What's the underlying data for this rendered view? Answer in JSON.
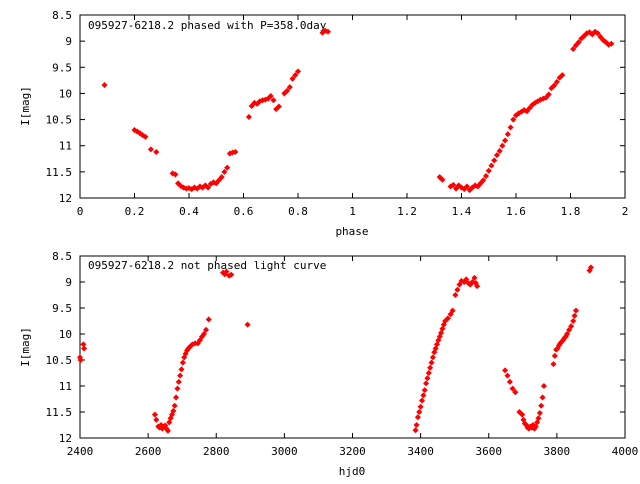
{
  "chart_data": [
    {
      "type": "scatter",
      "title": "095927-6218.2 phased with P=358.0day",
      "xlabel": "phase",
      "ylabel": "I[mag]",
      "xlim": [
        0,
        2
      ],
      "ylim": [
        8.5,
        12
      ],
      "y_inverted": true,
      "x_ticks": [
        "0",
        "0.2",
        "0.4",
        "0.6",
        "0.8",
        "1",
        "1.2",
        "1.4",
        "1.6",
        "1.8",
        "2"
      ],
      "y_ticks": [
        "8.5",
        "9",
        "9.5",
        "10",
        "10.5",
        "11",
        "11.5",
        "12"
      ],
      "marker_color": "#ff0000",
      "grid": false,
      "points": [
        [
          0.09,
          9.84
        ],
        [
          0.2,
          10.7
        ],
        [
          0.21,
          10.73
        ],
        [
          0.22,
          10.76
        ],
        [
          0.23,
          10.8
        ],
        [
          0.24,
          10.83
        ],
        [
          0.26,
          11.07
        ],
        [
          0.28,
          11.12
        ],
        [
          0.34,
          11.53
        ],
        [
          0.35,
          11.55
        ],
        [
          0.36,
          11.72
        ],
        [
          0.37,
          11.77
        ],
        [
          0.38,
          11.8
        ],
        [
          0.39,
          11.82
        ],
        [
          0.4,
          11.81
        ],
        [
          0.41,
          11.83
        ],
        [
          0.42,
          11.8
        ],
        [
          0.43,
          11.82
        ],
        [
          0.44,
          11.78
        ],
        [
          0.45,
          11.8
        ],
        [
          0.46,
          11.76
        ],
        [
          0.47,
          11.8
        ],
        [
          0.48,
          11.73
        ],
        [
          0.49,
          11.7
        ],
        [
          0.5,
          11.72
        ],
        [
          0.51,
          11.66
        ],
        [
          0.52,
          11.6
        ],
        [
          0.53,
          11.5
        ],
        [
          0.54,
          11.42
        ],
        [
          0.55,
          11.15
        ],
        [
          0.56,
          11.13
        ],
        [
          0.57,
          11.12
        ],
        [
          0.62,
          10.45
        ],
        [
          0.63,
          10.24
        ],
        [
          0.64,
          10.18
        ],
        [
          0.65,
          10.2
        ],
        [
          0.66,
          10.15
        ],
        [
          0.67,
          10.13
        ],
        [
          0.68,
          10.12
        ],
        [
          0.69,
          10.1
        ],
        [
          0.7,
          10.05
        ],
        [
          0.71,
          10.13
        ],
        [
          0.72,
          10.3
        ],
        [
          0.73,
          10.25
        ],
        [
          0.75,
          10.0
        ],
        [
          0.76,
          9.95
        ],
        [
          0.77,
          9.88
        ],
        [
          0.78,
          9.72
        ],
        [
          0.79,
          9.65
        ],
        [
          0.8,
          9.58
        ],
        [
          0.89,
          8.84
        ],
        [
          0.9,
          8.8
        ],
        [
          0.91,
          8.82
        ],
        [
          1.32,
          11.6
        ],
        [
          1.33,
          11.65
        ],
        [
          1.36,
          11.78
        ],
        [
          1.37,
          11.75
        ],
        [
          1.38,
          11.82
        ],
        [
          1.39,
          11.76
        ],
        [
          1.4,
          11.8
        ],
        [
          1.41,
          11.83
        ],
        [
          1.42,
          11.78
        ],
        [
          1.43,
          11.85
        ],
        [
          1.44,
          11.8
        ],
        [
          1.45,
          11.76
        ],
        [
          1.46,
          11.78
        ],
        [
          1.47,
          11.72
        ],
        [
          1.48,
          11.66
        ],
        [
          1.49,
          11.58
        ],
        [
          1.5,
          11.48
        ],
        [
          1.51,
          11.38
        ],
        [
          1.52,
          11.28
        ],
        [
          1.53,
          11.18
        ],
        [
          1.54,
          11.1
        ],
        [
          1.55,
          11.0
        ],
        [
          1.56,
          10.9
        ],
        [
          1.57,
          10.78
        ],
        [
          1.58,
          10.65
        ],
        [
          1.59,
          10.5
        ],
        [
          1.6,
          10.42
        ],
        [
          1.61,
          10.38
        ],
        [
          1.62,
          10.35
        ],
        [
          1.63,
          10.32
        ],
        [
          1.64,
          10.34
        ],
        [
          1.65,
          10.28
        ],
        [
          1.66,
          10.22
        ],
        [
          1.67,
          10.18
        ],
        [
          1.68,
          10.15
        ],
        [
          1.69,
          10.12
        ],
        [
          1.7,
          10.1
        ],
        [
          1.71,
          10.08
        ],
        [
          1.72,
          10.02
        ],
        [
          1.73,
          9.9
        ],
        [
          1.74,
          9.85
        ],
        [
          1.75,
          9.78
        ],
        [
          1.76,
          9.7
        ],
        [
          1.77,
          9.65
        ],
        [
          1.81,
          9.15
        ],
        [
          1.82,
          9.08
        ],
        [
          1.83,
          9.02
        ],
        [
          1.84,
          8.95
        ],
        [
          1.85,
          8.9
        ],
        [
          1.86,
          8.85
        ],
        [
          1.87,
          8.83
        ],
        [
          1.88,
          8.87
        ],
        [
          1.89,
          8.82
        ],
        [
          1.9,
          8.85
        ],
        [
          1.91,
          8.92
        ],
        [
          1.92,
          8.98
        ],
        [
          1.93,
          9.02
        ],
        [
          1.94,
          9.07
        ],
        [
          1.95,
          9.05
        ]
      ]
    },
    {
      "type": "scatter",
      "title": "095927-6218.2 not phased light curve",
      "xlabel": "hjd0",
      "ylabel": "I[mag]",
      "xlim": [
        2400,
        4000
      ],
      "ylim": [
        8.5,
        12
      ],
      "y_inverted": true,
      "x_ticks": [
        "2400",
        "2600",
        "2800",
        "3000",
        "3200",
        "3400",
        "3600",
        "3800",
        "4000"
      ],
      "y_ticks": [
        "8.5",
        "9",
        "9.5",
        "10",
        "10.5",
        "11",
        "11.5",
        "12"
      ],
      "marker_color": "#ff0000",
      "grid": false,
      "points": [
        [
          2400,
          10.45
        ],
        [
          2402,
          10.5
        ],
        [
          2410,
          10.2
        ],
        [
          2412,
          10.28
        ],
        [
          2620,
          11.55
        ],
        [
          2624,
          11.65
        ],
        [
          2630,
          11.78
        ],
        [
          2634,
          11.8
        ],
        [
          2638,
          11.75
        ],
        [
          2642,
          11.82
        ],
        [
          2646,
          11.78
        ],
        [
          2650,
          11.76
        ],
        [
          2654,
          11.82
        ],
        [
          2658,
          11.86
        ],
        [
          2662,
          11.7
        ],
        [
          2666,
          11.62
        ],
        [
          2670,
          11.55
        ],
        [
          2674,
          11.48
        ],
        [
          2678,
          11.38
        ],
        [
          2682,
          11.22
        ],
        [
          2686,
          11.05
        ],
        [
          2690,
          10.92
        ],
        [
          2694,
          10.8
        ],
        [
          2698,
          10.68
        ],
        [
          2702,
          10.55
        ],
        [
          2706,
          10.45
        ],
        [
          2710,
          10.38
        ],
        [
          2714,
          10.32
        ],
        [
          2718,
          10.28
        ],
        [
          2722,
          10.25
        ],
        [
          2730,
          10.2
        ],
        [
          2738,
          10.18
        ],
        [
          2746,
          10.18
        ],
        [
          2752,
          10.12
        ],
        [
          2758,
          10.05
        ],
        [
          2764,
          10.0
        ],
        [
          2770,
          9.92
        ],
        [
          2778,
          9.72
        ],
        [
          2820,
          8.82
        ],
        [
          2825,
          8.85
        ],
        [
          2830,
          8.8
        ],
        [
          2838,
          8.88
        ],
        [
          2844,
          8.86
        ],
        [
          2892,
          9.82
        ],
        [
          3385,
          11.85
        ],
        [
          3388,
          11.75
        ],
        [
          3392,
          11.6
        ],
        [
          3396,
          11.5
        ],
        [
          3400,
          11.4
        ],
        [
          3404,
          11.28
        ],
        [
          3408,
          11.18
        ],
        [
          3412,
          11.08
        ],
        [
          3416,
          10.95
        ],
        [
          3420,
          10.85
        ],
        [
          3424,
          10.75
        ],
        [
          3428,
          10.65
        ],
        [
          3432,
          10.55
        ],
        [
          3436,
          10.45
        ],
        [
          3440,
          10.35
        ],
        [
          3444,
          10.28
        ],
        [
          3448,
          10.2
        ],
        [
          3452,
          10.12
        ],
        [
          3456,
          10.05
        ],
        [
          3460,
          9.98
        ],
        [
          3464,
          9.9
        ],
        [
          3468,
          9.82
        ],
        [
          3472,
          9.75
        ],
        [
          3480,
          9.7
        ],
        [
          3488,
          9.62
        ],
        [
          3494,
          9.55
        ],
        [
          3502,
          9.25
        ],
        [
          3508,
          9.15
        ],
        [
          3514,
          9.05
        ],
        [
          3520,
          8.98
        ],
        [
          3528,
          9.0
        ],
        [
          3534,
          8.95
        ],
        [
          3540,
          9.02
        ],
        [
          3546,
          9.05
        ],
        [
          3552,
          9.0
        ],
        [
          3558,
          8.92
        ],
        [
          3562,
          9.02
        ],
        [
          3566,
          9.08
        ],
        [
          3648,
          10.7
        ],
        [
          3655,
          10.8
        ],
        [
          3662,
          10.92
        ],
        [
          3670,
          11.05
        ],
        [
          3678,
          11.12
        ],
        [
          3690,
          11.5
        ],
        [
          3698,
          11.55
        ],
        [
          3702,
          11.65
        ],
        [
          3706,
          11.72
        ],
        [
          3710,
          11.75
        ],
        [
          3714,
          11.8
        ],
        [
          3718,
          11.82
        ],
        [
          3722,
          11.78
        ],
        [
          3726,
          11.8
        ],
        [
          3730,
          11.75
        ],
        [
          3734,
          11.82
        ],
        [
          3738,
          11.78
        ],
        [
          3742,
          11.7
        ],
        [
          3746,
          11.62
        ],
        [
          3750,
          11.52
        ],
        [
          3754,
          11.38
        ],
        [
          3758,
          11.22
        ],
        [
          3762,
          11.0
        ],
        [
          3790,
          10.58
        ],
        [
          3794,
          10.42
        ],
        [
          3798,
          10.3
        ],
        [
          3802,
          10.28
        ],
        [
          3806,
          10.22
        ],
        [
          3810,
          10.18
        ],
        [
          3814,
          10.15
        ],
        [
          3818,
          10.12
        ],
        [
          3822,
          10.08
        ],
        [
          3826,
          10.05
        ],
        [
          3830,
          10.0
        ],
        [
          3836,
          9.92
        ],
        [
          3842,
          9.85
        ],
        [
          3848,
          9.75
        ],
        [
          3852,
          9.65
        ],
        [
          3856,
          9.55
        ],
        [
          3896,
          8.78
        ],
        [
          3900,
          8.72
        ]
      ]
    }
  ]
}
